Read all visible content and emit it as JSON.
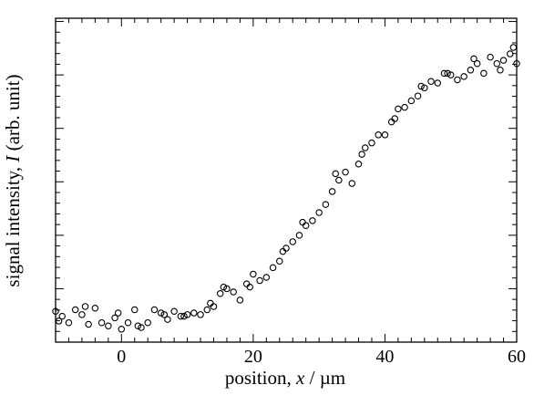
{
  "chart_data": {
    "type": "scatter",
    "title": "",
    "xlabel": "position, x / µm",
    "ylabel": "signal intensity, I (arb. unit)",
    "xlabel_parts": [
      "position, ",
      "x",
      " / µm"
    ],
    "ylabel_parts": [
      "signal intensity, ",
      "I",
      " (arb. unit)"
    ],
    "xlim": [
      -10,
      60
    ],
    "ylim": [
      0,
      1
    ],
    "x_major_ticks": [
      0,
      20,
      40,
      60
    ],
    "x_tick_labels": [
      "0",
      "20",
      "40",
      "60"
    ],
    "x_minor_step": 2,
    "y_major_ticks": [
      0,
      0.165,
      0.33,
      0.495,
      0.66,
      0.825,
      0.99
    ],
    "y_minor_step": 0.033,
    "y_tick_labels_shown": false,
    "grid": false,
    "legend": "none",
    "marker": "open-circle",
    "x": [
      -10,
      -9,
      -8,
      -7,
      -6,
      -5,
      -4,
      -3,
      -2,
      -1,
      0,
      1,
      2,
      3,
      4,
      5,
      6,
      7,
      8,
      9,
      10,
      11,
      12,
      13,
      14,
      15,
      16,
      17,
      18,
      19,
      20,
      21,
      22,
      23,
      24,
      25,
      26,
      27,
      28,
      29,
      30,
      31,
      32,
      33,
      34,
      35,
      36,
      37,
      38,
      39,
      40,
      41,
      42,
      43,
      44,
      45,
      46,
      47,
      48,
      49,
      50,
      51,
      52,
      53,
      54,
      55,
      56,
      57,
      58,
      59,
      60,
      -9.5,
      -5.5,
      -0.5,
      2.5,
      6.5,
      9.5,
      13.5,
      15.5,
      19.5,
      24.5,
      27.5,
      32.5,
      36.5,
      41.5,
      45.5,
      49.5,
      53.5,
      57.5,
      59.5
    ],
    "y": [
      0.095,
      0.08,
      0.06,
      0.1,
      0.085,
      0.055,
      0.105,
      0.06,
      0.05,
      0.075,
      0.04,
      0.06,
      0.1,
      0.045,
      0.06,
      0.1,
      0.09,
      0.07,
      0.095,
      0.08,
      0.085,
      0.09,
      0.085,
      0.1,
      0.11,
      0.15,
      0.165,
      0.155,
      0.13,
      0.18,
      0.21,
      0.19,
      0.2,
      0.23,
      0.25,
      0.29,
      0.31,
      0.33,
      0.36,
      0.375,
      0.4,
      0.425,
      0.465,
      0.5,
      0.525,
      0.49,
      0.55,
      0.6,
      0.615,
      0.64,
      0.64,
      0.68,
      0.72,
      0.725,
      0.745,
      0.76,
      0.785,
      0.805,
      0.8,
      0.83,
      0.825,
      0.81,
      0.82,
      0.84,
      0.86,
      0.83,
      0.88,
      0.86,
      0.87,
      0.89,
      0.86,
      0.065,
      0.11,
      0.09,
      0.05,
      0.085,
      0.08,
      0.12,
      0.17,
      0.17,
      0.28,
      0.37,
      0.52,
      0.58,
      0.69,
      0.79,
      0.83,
      0.875,
      0.84,
      0.91
    ]
  }
}
